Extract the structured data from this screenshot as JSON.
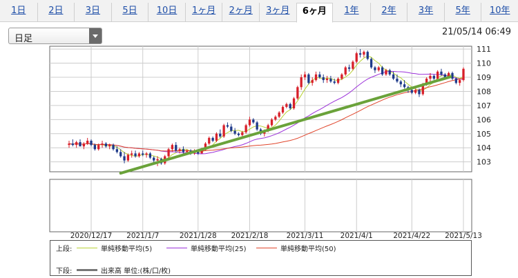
{
  "tabs": [
    {
      "label": "1日",
      "active": false
    },
    {
      "label": "2日",
      "active": false
    },
    {
      "label": "3日",
      "active": false
    },
    {
      "label": "5日",
      "active": false
    },
    {
      "label": "10日",
      "active": false
    },
    {
      "label": "1ヶ月",
      "active": false
    },
    {
      "label": "2ヶ月",
      "active": false
    },
    {
      "label": "3ヶ月",
      "active": false
    },
    {
      "label": "6ヶ月",
      "active": true
    },
    {
      "label": "1年",
      "active": false
    },
    {
      "label": "2年",
      "active": false
    },
    {
      "label": "3年",
      "active": false
    },
    {
      "label": "5年",
      "active": false
    },
    {
      "label": "10年",
      "active": false
    }
  ],
  "period_select": {
    "value": "日足"
  },
  "timestamp": "21/05/14 06:49",
  "legend": {
    "upper_label": "上段:",
    "lower_label": "下段:",
    "ma5": "単純移動平均(5)",
    "ma25": "単純移動平均(25)",
    "ma50": "単純移動平均(50)",
    "volume": "出来高 単位:(株/口/枚)"
  },
  "colors": {
    "up": "#d8202a",
    "down": "#1e3a8a",
    "ma5": "#b8d234",
    "ma25": "#9b30d9",
    "ma50": "#e0442a",
    "trendline": "#6aa23a",
    "grid": "#cccccc"
  },
  "chart_data": {
    "type": "candlestick",
    "x_tick_labels": [
      "2020/12/17",
      "2021/1/7",
      "2021/1/28",
      "2021/2/18",
      "2021/3/11",
      "2021/4/1",
      "2021/4/22",
      "2021/5/13"
    ],
    "y_tick_labels": [
      "103",
      "104",
      "105",
      "106",
      "107",
      "108",
      "109",
      "110",
      "111"
    ],
    "ylim": [
      102.3,
      111.2
    ],
    "ohlc": [
      [
        104.2,
        104.5,
        104.0,
        104.3
      ],
      [
        104.3,
        104.6,
        104.1,
        104.2
      ],
      [
        104.2,
        104.5,
        104.0,
        104.4
      ],
      [
        104.4,
        104.6,
        104.1,
        104.1
      ],
      [
        104.1,
        104.4,
        103.9,
        104.3
      ],
      [
        104.3,
        104.7,
        104.2,
        104.5
      ],
      [
        104.5,
        104.6,
        104.1,
        104.2
      ],
      [
        104.2,
        104.3,
        103.8,
        103.9
      ],
      [
        103.9,
        104.3,
        103.8,
        104.2
      ],
      [
        104.2,
        104.5,
        104.0,
        104.3
      ],
      [
        104.3,
        104.4,
        104.0,
        104.1
      ],
      [
        104.1,
        104.3,
        103.9,
        104.2
      ],
      [
        104.2,
        104.3,
        103.8,
        103.9
      ],
      [
        103.9,
        104.1,
        103.6,
        103.7
      ],
      [
        103.7,
        103.9,
        103.3,
        103.4
      ],
      [
        103.4,
        103.7,
        102.9,
        103.1
      ],
      [
        103.1,
        103.6,
        103.0,
        103.5
      ],
      [
        103.5,
        103.8,
        103.3,
        103.6
      ],
      [
        103.6,
        103.8,
        103.3,
        103.4
      ],
      [
        103.4,
        103.7,
        103.3,
        103.6
      ],
      [
        103.6,
        103.8,
        103.4,
        103.5
      ],
      [
        103.5,
        103.7,
        103.3,
        103.6
      ],
      [
        103.6,
        103.7,
        103.2,
        103.3
      ],
      [
        103.3,
        103.4,
        102.9,
        103.1
      ],
      [
        103.1,
        103.4,
        102.7,
        103.2
      ],
      [
        103.2,
        103.3,
        102.8,
        102.9
      ],
      [
        102.9,
        103.5,
        102.8,
        103.4
      ],
      [
        103.4,
        104.0,
        103.3,
        103.9
      ],
      [
        103.9,
        104.3,
        103.7,
        104.2
      ],
      [
        104.2,
        104.4,
        103.7,
        103.8
      ],
      [
        103.8,
        104.0,
        103.6,
        103.9
      ],
      [
        103.9,
        104.1,
        103.6,
        103.7
      ],
      [
        103.7,
        103.9,
        103.5,
        103.8
      ],
      [
        103.8,
        103.9,
        103.5,
        103.6
      ],
      [
        103.6,
        103.9,
        103.5,
        103.7
      ],
      [
        103.7,
        103.8,
        103.5,
        103.6
      ],
      [
        103.6,
        104.0,
        103.6,
        103.9
      ],
      [
        103.9,
        104.4,
        103.8,
        104.3
      ],
      [
        104.3,
        104.8,
        104.2,
        104.7
      ],
      [
        104.7,
        104.8,
        104.4,
        104.5
      ],
      [
        104.5,
        105.1,
        104.4,
        105.0
      ],
      [
        105.0,
        105.3,
        104.7,
        104.8
      ],
      [
        104.8,
        105.7,
        104.7,
        105.6
      ],
      [
        105.6,
        105.8,
        105.4,
        105.5
      ],
      [
        105.5,
        105.7,
        105.1,
        105.2
      ],
      [
        105.2,
        105.4,
        104.9,
        105.0
      ],
      [
        105.0,
        105.1,
        104.8,
        104.9
      ],
      [
        104.9,
        105.2,
        104.8,
        105.1
      ],
      [
        105.1,
        105.7,
        105.0,
        105.6
      ],
      [
        105.6,
        106.2,
        105.5,
        106.0
      ],
      [
        106.0,
        106.1,
        105.7,
        105.8
      ],
      [
        105.8,
        105.9,
        105.2,
        105.3
      ],
      [
        105.3,
        105.4,
        104.9,
        105.0
      ],
      [
        105.0,
        105.3,
        104.8,
        105.2
      ],
      [
        105.2,
        105.7,
        105.1,
        105.6
      ],
      [
        105.6,
        106.1,
        105.5,
        106.0
      ],
      [
        106.0,
        106.3,
        105.9,
        106.2
      ],
      [
        106.2,
        106.6,
        106.1,
        106.5
      ],
      [
        106.5,
        107.0,
        106.4,
        106.9
      ],
      [
        106.9,
        107.2,
        106.8,
        107.1
      ],
      [
        107.1,
        107.2,
        106.7,
        106.8
      ],
      [
        106.8,
        107.6,
        106.7,
        107.5
      ],
      [
        107.5,
        108.4,
        107.4,
        108.3
      ],
      [
        108.3,
        109.2,
        108.1,
        109.0
      ],
      [
        109.0,
        109.4,
        108.8,
        109.2
      ],
      [
        109.2,
        109.3,
        108.5,
        108.6
      ],
      [
        108.6,
        109.0,
        108.4,
        108.8
      ],
      [
        108.8,
        109.4,
        108.7,
        109.2
      ],
      [
        109.2,
        109.4,
        108.9,
        109.0
      ],
      [
        109.0,
        109.2,
        108.6,
        108.8
      ],
      [
        108.8,
        109.1,
        108.6,
        108.9
      ],
      [
        108.9,
        109.1,
        108.6,
        108.7
      ],
      [
        108.7,
        108.9,
        108.5,
        108.6
      ],
      [
        108.6,
        109.0,
        108.5,
        108.9
      ],
      [
        108.9,
        109.3,
        108.8,
        109.2
      ],
      [
        109.2,
        109.8,
        109.1,
        109.7
      ],
      [
        109.7,
        109.9,
        109.4,
        109.6
      ],
      [
        109.6,
        110.2,
        109.5,
        110.1
      ],
      [
        110.1,
        110.8,
        110.0,
        110.7
      ],
      [
        110.7,
        111.0,
        110.4,
        110.6
      ],
      [
        110.6,
        110.9,
        110.4,
        110.8
      ],
      [
        110.8,
        110.9,
        110.2,
        110.3
      ],
      [
        110.3,
        110.4,
        109.6,
        109.7
      ],
      [
        109.7,
        109.8,
        109.3,
        109.5
      ],
      [
        109.5,
        109.8,
        109.4,
        109.7
      ],
      [
        109.7,
        109.8,
        109.1,
        109.2
      ],
      [
        109.2,
        109.6,
        109.1,
        109.5
      ],
      [
        109.5,
        109.6,
        109.1,
        109.2
      ],
      [
        109.2,
        109.4,
        108.8,
        108.9
      ],
      [
        108.9,
        109.2,
        108.6,
        108.7
      ],
      [
        108.7,
        108.8,
        108.3,
        108.5
      ],
      [
        108.5,
        108.8,
        108.2,
        108.3
      ],
      [
        108.3,
        108.4,
        107.9,
        108.1
      ],
      [
        108.1,
        108.3,
        107.8,
        107.9
      ],
      [
        107.9,
        108.2,
        107.8,
        108.1
      ],
      [
        108.1,
        108.2,
        107.6,
        107.8
      ],
      [
        107.8,
        108.6,
        107.7,
        108.5
      ],
      [
        108.5,
        109.0,
        108.4,
        108.9
      ],
      [
        108.9,
        109.3,
        108.7,
        109.1
      ],
      [
        109.1,
        109.2,
        108.8,
        108.9
      ],
      [
        108.9,
        109.5,
        108.8,
        109.4
      ],
      [
        109.4,
        109.6,
        109.1,
        109.2
      ],
      [
        109.2,
        109.3,
        108.9,
        109.0
      ],
      [
        109.0,
        109.4,
        108.9,
        109.3
      ],
      [
        109.3,
        109.4,
        108.8,
        108.9
      ],
      [
        108.9,
        109.0,
        108.5,
        108.6
      ],
      [
        108.6,
        108.9,
        108.4,
        108.8
      ],
      [
        108.8,
        109.7,
        108.7,
        109.6
      ]
    ],
    "moving_averages": [
      {
        "name": "単純移動平均(5)",
        "period": 5,
        "color": "#b8d234"
      },
      {
        "name": "単純移動平均(25)",
        "period": 25,
        "color": "#9b30d9"
      },
      {
        "name": "単純移動平均(50)",
        "period": 50,
        "color": "#e0442a"
      }
    ],
    "trendline": {
      "start_index": 14,
      "start_value": 102.2,
      "end_value": 109.3
    },
    "volume": []
  }
}
